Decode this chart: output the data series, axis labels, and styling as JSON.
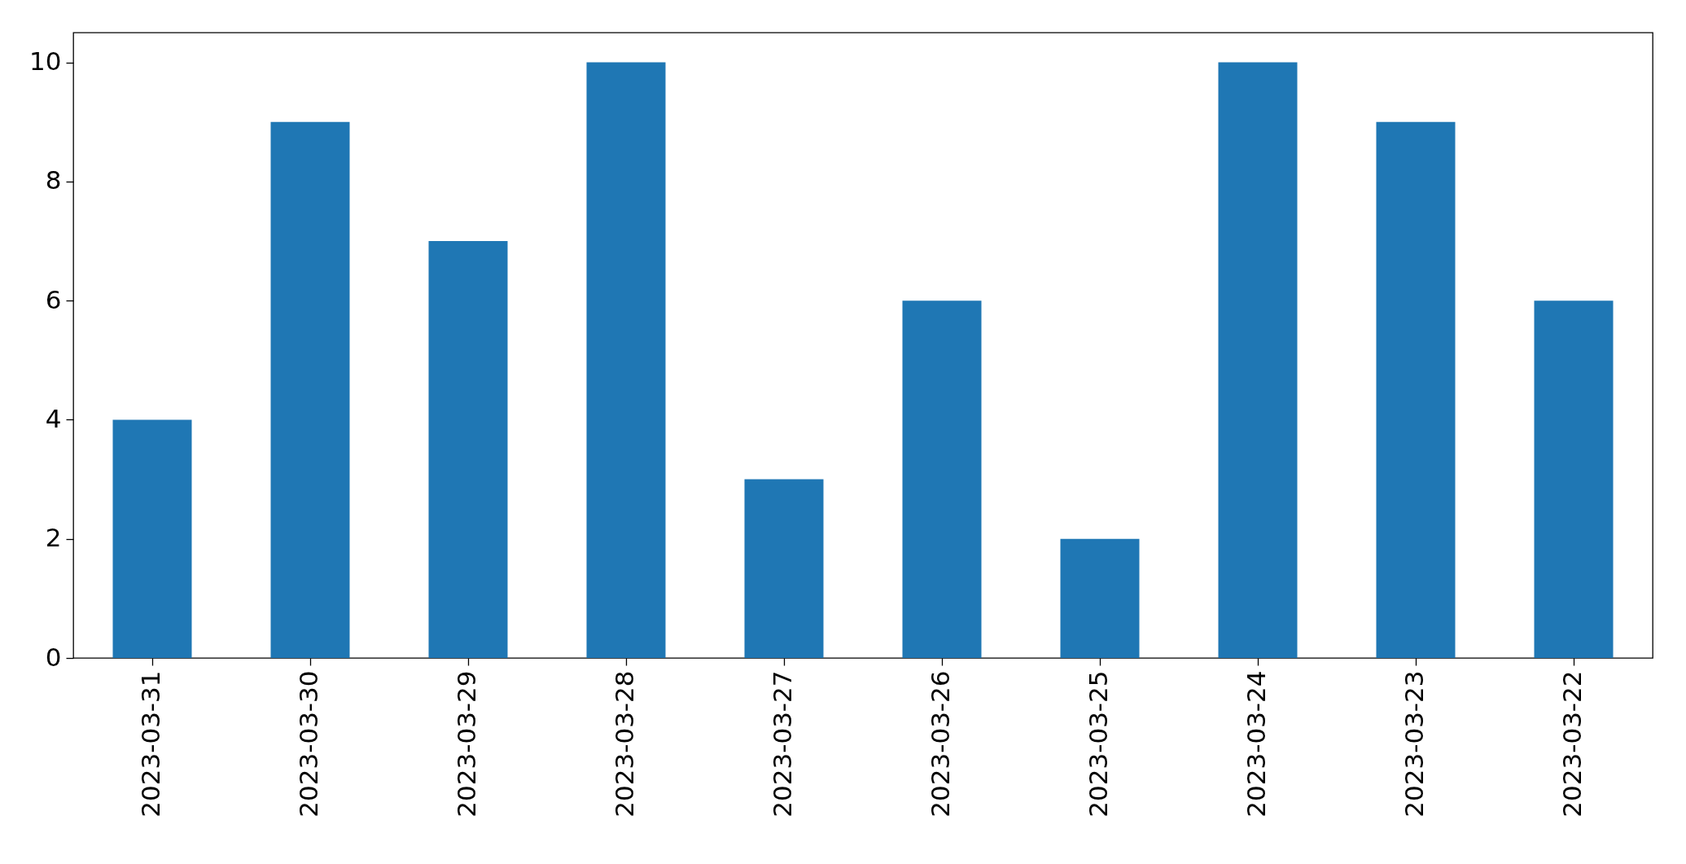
{
  "chart_data": {
    "type": "bar",
    "categories": [
      "2023-03-31",
      "2023-03-30",
      "2023-03-29",
      "2023-03-28",
      "2023-03-27",
      "2023-03-26",
      "2023-03-25",
      "2023-03-24",
      "2023-03-23",
      "2023-03-22"
    ],
    "values": [
      4,
      9,
      7,
      10,
      3,
      6,
      2,
      10,
      9,
      6
    ],
    "color": "#1f77b4",
    "ylim": [
      0,
      10.5
    ],
    "yticks": [
      0,
      2,
      4,
      6,
      8,
      10
    ],
    "grid": false
  }
}
